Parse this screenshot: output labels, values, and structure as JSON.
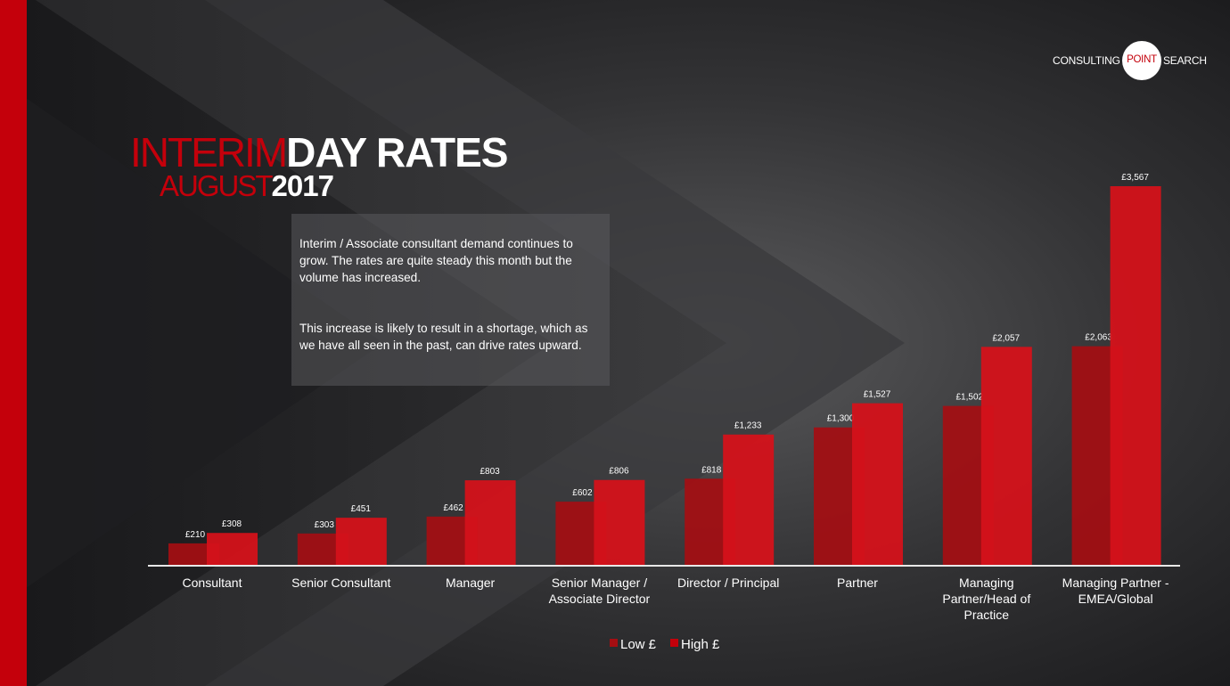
{
  "slide": {
    "title_thin_1": "INTERIM",
    "title_bold_1": "DAY RATES",
    "title_thin_2": "AUGUST",
    "title_bold_2": "2017",
    "paragraph_1": "Interim / Associate consultant demand continues to grow.  The rates are quite steady this month but the volume has increased.",
    "paragraph_2": "This increase is likely to result in a shortage, which as we have all seen in the past, can drive rates upward."
  },
  "logo": {
    "left_text": "CONSULTING",
    "circle_text": "POINT",
    "right_text": "SEARCH"
  },
  "colors": {
    "accent": "#c4000b",
    "low": "#a50e12",
    "high": "#d4121a",
    "background": "#2a2a2c"
  },
  "chart_data": {
    "type": "bar",
    "categories": [
      [
        "Consultant"
      ],
      [
        "Senior Consultant"
      ],
      [
        "Manager"
      ],
      [
        "Senior Manager /",
        "Associate Director"
      ],
      [
        "Director / Principal"
      ],
      [
        "Partner"
      ],
      [
        "Managing",
        "Partner/Head of",
        "Practice"
      ],
      [
        "Managing Partner -",
        "EMEA/Global"
      ]
    ],
    "series": [
      {
        "name": "Low £",
        "values": [
          210,
          303,
          462,
          602,
          818,
          1300,
          1502,
          2063
        ],
        "labels": [
          "£210",
          "£303",
          "£462",
          "£602",
          "£818",
          "£1,300",
          "£1,502",
          "£2,063"
        ]
      },
      {
        "name": "High £",
        "values": [
          308,
          451,
          803,
          806,
          1233,
          1527,
          2057,
          3567
        ],
        "labels": [
          "£308",
          "£451",
          "£803",
          "£806",
          "£1,233",
          "£1,527",
          "£2,057",
          "£3,567"
        ]
      }
    ],
    "ylim": [
      0,
      3567
    ],
    "legend_position": "bottom",
    "grid": false
  }
}
